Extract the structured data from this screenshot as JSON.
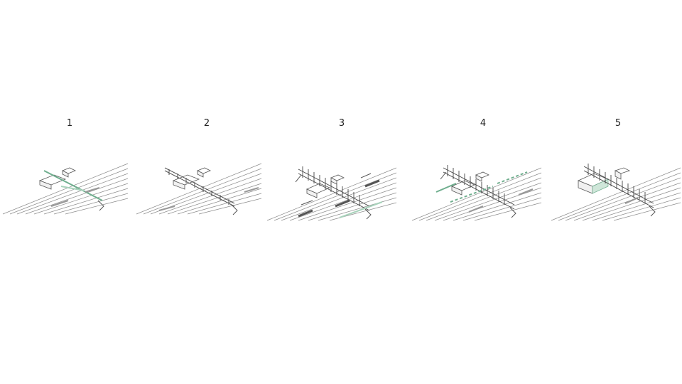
{
  "steps": [
    {
      "label": "1"
    },
    {
      "label": "2"
    },
    {
      "label": "3"
    },
    {
      "label": "4"
    },
    {
      "label": "5"
    }
  ],
  "colors": {
    "accent_green": "#6fae8e",
    "line_gray": "#8c8c8c"
  }
}
